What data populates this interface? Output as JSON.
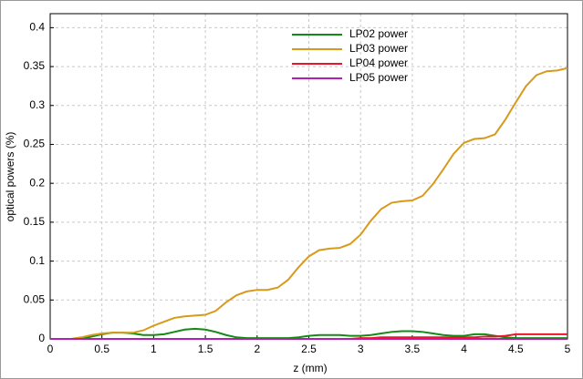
{
  "chart_data": {
    "type": "line",
    "xlabel": "z (mm)",
    "ylabel": "optical powers (%)",
    "x": [
      0,
      0.1,
      0.2,
      0.3,
      0.4,
      0.5,
      0.6,
      0.7,
      0.8,
      0.9,
      1,
      1.1,
      1.2,
      1.3,
      1.4,
      1.5,
      1.6,
      1.7,
      1.8,
      1.9,
      2,
      2.1,
      2.2,
      2.3,
      2.4,
      2.5,
      2.6,
      2.7,
      2.8,
      2.9,
      3,
      3.1,
      3.2,
      3.3,
      3.4,
      3.5,
      3.6,
      3.7,
      3.8,
      3.9,
      4,
      4.1,
      4.2,
      4.3,
      4.4,
      4.5,
      4.6,
      4.7,
      4.8,
      4.9,
      5
    ],
    "series": [
      {
        "name": "LP02 power",
        "color": "#138a13",
        "values": [
          0,
          0,
          0,
          0,
          0.003,
          0.006,
          0.008,
          0.008,
          0.007,
          0.005,
          0.005,
          0.006,
          0.009,
          0.012,
          0.013,
          0.012,
          0.009,
          0.005,
          0.002,
          0.001,
          0.001,
          0.001,
          0.001,
          0.001,
          0.002,
          0.004,
          0.005,
          0.005,
          0.005,
          0.004,
          0.004,
          0.005,
          0.007,
          0.009,
          0.01,
          0.01,
          0.009,
          0.007,
          0.005,
          0.004,
          0.004,
          0.006,
          0.006,
          0.004,
          0.002,
          0.001,
          0.001,
          0.001,
          0.001,
          0.001,
          0.001
        ]
      },
      {
        "name": "LP03 power",
        "color": "#d89a1c",
        "values": [
          0,
          0,
          0,
          0.002,
          0.005,
          0.007,
          0.008,
          0.008,
          0.008,
          0.011,
          0.017,
          0.022,
          0.027,
          0.029,
          0.03,
          0.031,
          0.036,
          0.047,
          0.056,
          0.061,
          0.063,
          0.063,
          0.066,
          0.076,
          0.092,
          0.106,
          0.114,
          0.116,
          0.117,
          0.122,
          0.134,
          0.152,
          0.167,
          0.175,
          0.177,
          0.178,
          0.184,
          0.199,
          0.218,
          0.238,
          0.252,
          0.257,
          0.258,
          0.263,
          0.282,
          0.304,
          0.325,
          0.339,
          0.344,
          0.345,
          0.348
        ]
      },
      {
        "name": "LP04 power",
        "color": "#e8162c",
        "values": [
          0,
          0,
          0,
          0,
          0,
          0,
          0,
          0,
          0,
          0,
          0,
          0,
          0,
          0,
          0,
          0,
          0,
          0,
          0,
          0,
          0,
          0,
          0,
          0,
          0,
          0,
          0,
          0,
          0,
          0,
          0.001,
          0.001,
          0.002,
          0.002,
          0.002,
          0.002,
          0.002,
          0.002,
          0.002,
          0.002,
          0.002,
          0.002,
          0.003,
          0.003,
          0.004,
          0.006,
          0.006,
          0.006,
          0.006,
          0.006,
          0.006
        ]
      },
      {
        "name": "LP05 power",
        "color": "#b41eb4",
        "values": [
          0,
          0,
          0,
          0,
          0,
          0,
          0,
          0,
          0,
          0,
          0,
          0,
          0,
          0,
          0,
          0,
          0,
          0,
          0,
          0,
          0,
          0,
          0,
          0,
          0,
          0,
          0,
          0,
          0,
          0,
          0,
          0,
          0,
          0,
          0,
          0,
          0,
          0,
          0,
          0,
          0,
          0,
          0,
          0,
          0,
          0,
          0,
          0,
          0,
          0,
          0
        ]
      }
    ],
    "xlim": [
      0,
      5
    ],
    "xticks": [
      0,
      0.5,
      1,
      1.5,
      2,
      2.5,
      3,
      3.5,
      4,
      4.5,
      5
    ],
    "ylim": [
      0,
      0.418
    ],
    "yticks": [
      0,
      0.05,
      0.1,
      0.15,
      0.2,
      0.25,
      0.3,
      0.35,
      0.4
    ],
    "grid": true,
    "legend": "top"
  }
}
